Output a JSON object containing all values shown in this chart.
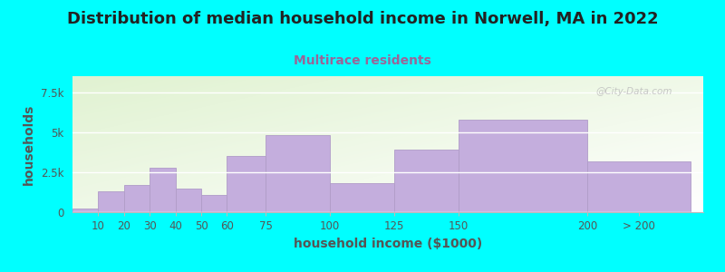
{
  "title": "Distribution of median household income in Norwell, MA in 2022",
  "subtitle": "Multirace residents",
  "xlabel": "household income ($1000)",
  "ylabel": "households",
  "background_outer": "#00FFFF",
  "bar_color": "#C4AEDD",
  "bar_edge_color": "#B09CC8",
  "values": [
    200,
    1300,
    1700,
    2800,
    1500,
    1100,
    3500,
    4800,
    1800,
    3900,
    5800,
    3200
  ],
  "bin_lefts": [
    0,
    10,
    20,
    30,
    40,
    50,
    60,
    75,
    100,
    125,
    150,
    200
  ],
  "bin_rights": [
    10,
    20,
    30,
    40,
    50,
    60,
    75,
    100,
    125,
    150,
    200,
    240
  ],
  "yticks": [
    0,
    2500,
    5000,
    7500
  ],
  "ytick_labels": [
    "0",
    "2.5k",
    "5k",
    "7.5k"
  ],
  "ylim": [
    0,
    8500
  ],
  "xlim": [
    0,
    245
  ],
  "xtick_positions": [
    10,
    20,
    30,
    40,
    50,
    60,
    75,
    100,
    125,
    150,
    200,
    220
  ],
  "xtick_labels": [
    "10",
    "20",
    "30",
    "40",
    "50",
    "60",
    "75",
    "100",
    "125",
    "150",
    "200",
    "> 200"
  ],
  "title_fontsize": 13,
  "subtitle_fontsize": 10,
  "axis_label_fontsize": 10,
  "tick_fontsize": 8.5,
  "title_color": "#222222",
  "subtitle_color": "#996699",
  "axis_label_color": "#555555",
  "tick_color": "#555555",
  "watermark": "@City-Data.com",
  "grid_color": "#DDDDDD"
}
